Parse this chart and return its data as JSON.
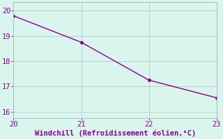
{
  "x": [
    20,
    21,
    22,
    23
  ],
  "y": [
    19.8,
    18.75,
    17.25,
    16.55
  ],
  "line_color": "#880088",
  "marker_color": "#880088",
  "bg_color": "#daf4ee",
  "grid_color": "#b0cfc8",
  "spine_color": "#a0b8b4",
  "xlabel": "Windchill (Refroidissement éolien,°C)",
  "xlabel_color": "#880088",
  "tick_color": "#880088",
  "xlim": [
    20,
    23
  ],
  "ylim": [
    15.75,
    20.35
  ],
  "xticks": [
    20,
    21,
    22,
    23
  ],
  "yticks": [
    16,
    17,
    18,
    19,
    20
  ],
  "marker_size": 3,
  "line_width": 1.0,
  "font_size": 7.5
}
